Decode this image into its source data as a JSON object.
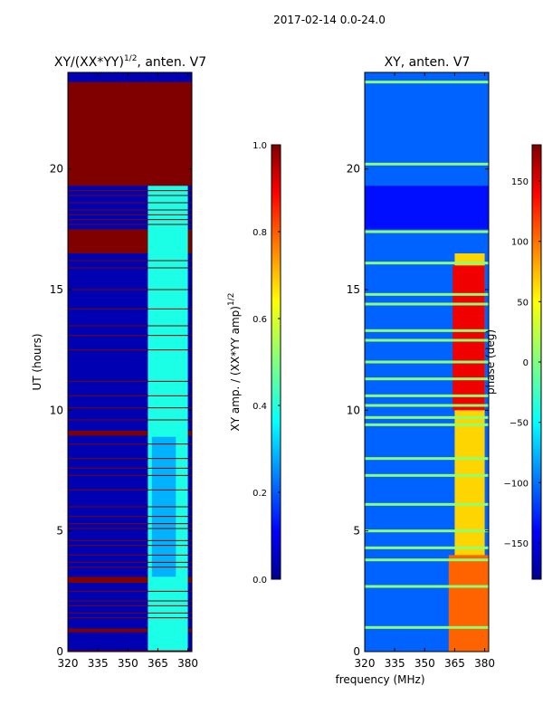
{
  "figure": {
    "suptitle": "2017-02-14 0.0-24.0",
    "shared_xlabel": "frequency (MHz)"
  },
  "colors": {
    "jet_dark_red": "#800000",
    "jet_dark_blue": "#00008f",
    "jet_mid_blue": "#0a1fe0",
    "jet_blue": "#1a50ff",
    "jet_cyan": "#2fd6ff",
    "jet_green": "#8cff70",
    "jet_yellow": "#f5ff10",
    "jet_orange": "#ff9a00",
    "jet_red": "#e81000"
  },
  "chart_data": [
    {
      "type": "heatmap",
      "title_main": "XY/(XX*YY)",
      "title_exp": "1/2",
      "title_tail": ", anten. V7",
      "xlabel": "",
      "ylabel": "UT (hours)",
      "xlim": [
        320,
        382
      ],
      "ylim": [
        0,
        24
      ],
      "xticks": [
        320,
        335,
        350,
        365,
        380
      ],
      "yticks": [
        0,
        5,
        10,
        15,
        20
      ],
      "colorbar": {
        "label_main": "XY amp. / (XX*YY amp)",
        "label_exp": "1/2",
        "range": [
          0.0,
          1.0
        ],
        "ticks": [
          "0.0",
          "0.2",
          "0.4",
          "0.6",
          "0.8",
          "1.0"
        ],
        "tick_values": [
          0.0,
          0.2,
          0.4,
          0.6,
          0.8,
          1.0
        ]
      },
      "background_value": 0.05,
      "bands": [
        {
          "y0": 23.6,
          "y1": 24.0,
          "x0": 320,
          "x1": 382,
          "value": 0.05
        },
        {
          "y0": 19.3,
          "y1": 23.6,
          "x0": 320,
          "x1": 382,
          "value": 1.0
        },
        {
          "y0": 16.5,
          "y1": 17.5,
          "x0": 320,
          "x1": 382,
          "value": 1.0
        },
        {
          "y0": 8.95,
          "y1": 9.15,
          "x0": 320,
          "x1": 382,
          "value": 1.0
        },
        {
          "y0": 2.85,
          "y1": 3.1,
          "x0": 320,
          "x1": 382,
          "value": 1.0
        },
        {
          "y0": 0.8,
          "y1": 0.95,
          "x0": 320,
          "x1": 382,
          "value": 1.0
        },
        {
          "y0": 0.0,
          "y1": 0.05,
          "x0": 320,
          "x1": 382,
          "value": 1.0
        },
        {
          "y0": 0.05,
          "y1": 19.3,
          "x0": 360,
          "x1": 380,
          "value": 0.4
        },
        {
          "y0": 3.1,
          "y1": 8.9,
          "x0": 362,
          "x1": 374,
          "value": 0.3
        }
      ],
      "thin_lines_hours": [
        1.4,
        1.6,
        1.9,
        2.1,
        2.5,
        3.5,
        3.7,
        4.0,
        4.4,
        4.6,
        5.1,
        5.3,
        5.6,
        6.0,
        6.7,
        7.3,
        7.6,
        8.0,
        8.6,
        9.6,
        10.1,
        10.6,
        11.2,
        12.5,
        13.1,
        13.5,
        14.2,
        15.0,
        15.9,
        16.2,
        17.7,
        17.9,
        18.1,
        18.3,
        18.6,
        18.9,
        19.1
      ]
    },
    {
      "type": "heatmap",
      "title_main": "XY, anten. V7",
      "xlabel": "frequency (MHz)",
      "ylabel": "",
      "xlim": [
        320,
        382
      ],
      "ylim": [
        0,
        24
      ],
      "xticks": [
        320,
        335,
        350,
        365,
        380
      ],
      "yticks": [
        0,
        5,
        10,
        15,
        20
      ],
      "colorbar": {
        "label_main": "phase (deg)",
        "range": [
          -180,
          180
        ],
        "ticks": [
          "−150",
          "−100",
          "−50",
          "0",
          "50",
          "100",
          "150"
        ],
        "tick_values": [
          -150,
          -100,
          -50,
          0,
          50,
          100,
          150
        ]
      },
      "background_value": -100,
      "bands": [
        {
          "y0": 17.5,
          "y1": 19.3,
          "x0": 320,
          "x1": 382,
          "value": -130
        },
        {
          "y0": 0.0,
          "y1": 16.5,
          "x0": 365,
          "x1": 380,
          "value": 60
        },
        {
          "y0": 0.0,
          "y1": 4.0,
          "x0": 362,
          "x1": 382,
          "value": 100
        },
        {
          "y0": 10.0,
          "y1": 16.0,
          "x0": 364,
          "x1": 380,
          "value": 140
        }
      ],
      "stripe_hours": [
        1.0,
        2.7,
        3.8,
        4.3,
        5.0,
        6.1,
        7.3,
        8.0,
        9.4,
        9.7,
        10.2,
        10.6,
        11.3,
        12.0,
        12.9,
        13.3,
        14.4,
        14.8,
        16.1,
        17.4,
        20.2,
        23.6
      ]
    }
  ]
}
